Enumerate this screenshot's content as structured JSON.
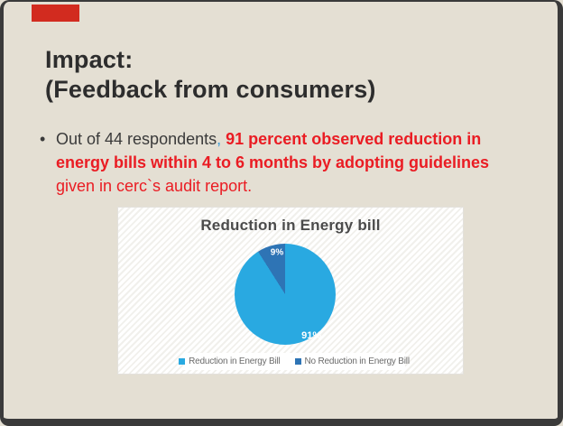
{
  "slide": {
    "background_color": "#E4DFD3",
    "frame_color": "#3A3A3A",
    "corner_accent_color": "#D22B1F",
    "title_lines": [
      "Impact:",
      "(Feedback from consumers)"
    ],
    "title_color": "#2D2D2D"
  },
  "bullet": {
    "marker": "•",
    "colors": {
      "dark": "#3A3A3A",
      "red": "#EA1C23",
      "blue": "#3E9ED9"
    },
    "lines": [
      [
        {
          "text": "Out of 44 respondents",
          "style": "dark"
        },
        {
          "text": ",",
          "style": "blue"
        },
        {
          "text": " ",
          "style": "dark"
        },
        {
          "text": "91 percent observed reduction in",
          "style": "red-bold"
        }
      ],
      [
        {
          "text": "energy bills within 4 to 6 months by adopting guidelines",
          "style": "red-bold"
        }
      ],
      [
        {
          "text": "given in cerc`s audit report.",
          "style": "red"
        }
      ]
    ]
  },
  "chart_data": {
    "type": "pie",
    "title": "Reduction in Energy bill",
    "categories": [
      "Reduction in Energy Bill",
      "No Reduction in Energy Bill"
    ],
    "values": [
      91,
      9
    ],
    "labels": [
      "91%",
      "9%"
    ],
    "colors": [
      "#29A9E1",
      "#2E74B5"
    ],
    "start_angle_deg": 0,
    "direction": "clockwise",
    "legend_position": "bottom",
    "title_color": "#4B4B4B",
    "label_color": "#FFFFFF",
    "legend_text_color": "#6B6B6B",
    "panel_background": "#FFFFFF"
  }
}
